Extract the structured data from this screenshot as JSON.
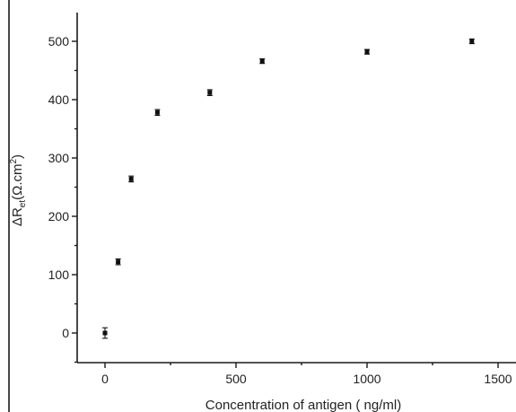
{
  "chart_data": {
    "type": "scatter",
    "title": "",
    "xlabel": "Concentration of antigen ( ng/ml)",
    "ylabel": "ΔRet(Ω.cm²)",
    "ylabel_parts": {
      "base": "ΔR",
      "sub": "et",
      "paren": "(Ω.cm",
      "sup": "2",
      "close": ")"
    },
    "xlim": [
      -100,
      1560
    ],
    "ylim": [
      -50,
      550
    ],
    "x_ticks": [
      0,
      500,
      1000,
      1500
    ],
    "x_tick_labels": [
      "0",
      "500",
      "1000",
      "1500"
    ],
    "y_ticks": [
      0,
      100,
      200,
      300,
      400,
      500
    ],
    "y_tick_labels": [
      "0",
      "100",
      "200",
      "300",
      "400",
      "500"
    ],
    "grid": false,
    "series": [
      {
        "x": [
          0,
          50,
          100,
          200,
          400,
          600,
          1000,
          1400
        ],
        "y": [
          0,
          122,
          264,
          378,
          412,
          466,
          482,
          500
        ],
        "err": [
          9,
          5,
          5,
          5,
          5,
          4,
          4,
          4
        ]
      }
    ]
  }
}
